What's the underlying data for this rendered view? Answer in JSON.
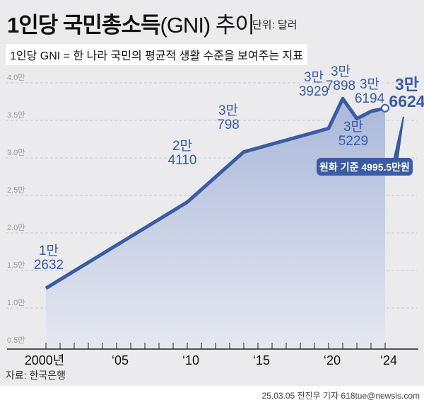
{
  "header": {
    "title": "1인당 국민총소득",
    "title_paren": "(GNI) 추이",
    "unit": "단위: 달러",
    "subtitle": "1인당 GNI = 한 나라 국민의 평균적 생활 수준을 보여주는 지표"
  },
  "chart_data": {
    "type": "area",
    "title": "1인당 국민총소득(GNI) 추이",
    "unit": "달러",
    "x": [
      2000,
      2010,
      2014,
      2020,
      2021,
      2022,
      2023,
      2024
    ],
    "values": [
      12632,
      24110,
      30798,
      33929,
      37898,
      35229,
      36194,
      36624
    ],
    "point_labels": [
      [
        "1만",
        "2632"
      ],
      [
        "2만",
        "4110"
      ],
      [
        "3만",
        "798"
      ],
      [
        "3만",
        "3929"
      ],
      [
        "3만",
        "7898"
      ],
      [
        "3만",
        "5229"
      ],
      [
        "3만",
        "6194"
      ],
      [
        "3만",
        "6624"
      ]
    ],
    "ylim": [
      5000,
      40000
    ],
    "y_ticks": [
      "0.5만",
      "1.0만",
      "1.5만",
      "2.0만",
      "2.5만",
      "3.0만",
      "3.5만",
      "4.0만"
    ],
    "y_tick_values": [
      5000,
      10000,
      15000,
      20000,
      25000,
      30000,
      35000,
      40000
    ],
    "x_tick_labels": [
      "2000년",
      "‘05",
      "‘10",
      "‘15",
      "‘20",
      "‘24"
    ],
    "x_tick_values": [
      2000,
      2005,
      2010,
      2015,
      2020,
      2024
    ],
    "annotation": "원화 기준 4995.5만원",
    "grid": true,
    "colors": {
      "line": "#3a5ba5",
      "fill_top": "#a9b7da",
      "fill_bottom": "#e6e8ef",
      "label": "#3a5ba5"
    }
  },
  "footer": {
    "source": "자료: 한국은행",
    "credit": "25.03.05 전진우 기자 618tue@newsis.com"
  }
}
